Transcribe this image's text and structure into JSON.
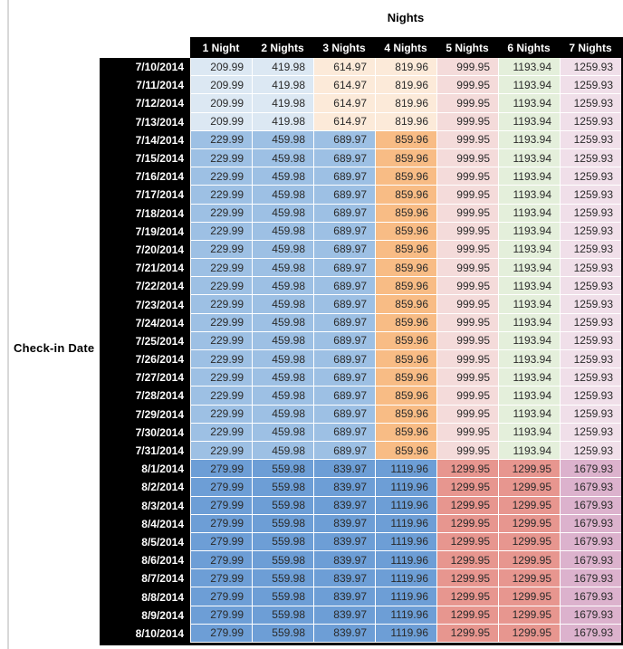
{
  "table": {
    "title": "Nights",
    "row_axis_label": "Check-in Date",
    "columns": [
      "1 Night",
      "2 Nights",
      "3 Nights",
      "4 Nights",
      "5 Nights",
      "6 Nights",
      "7 Nights"
    ],
    "palette": {
      "lightBlue": "#DCE8F3",
      "lightOrange": "#FCEAD9",
      "medBlue": "#9DC0E4",
      "medOrange": "#F8BC85",
      "lightPink": "#F4DBDA",
      "lightGreen": "#E4EFDB",
      "lightLavender": "#F0DFE9",
      "darkBlue": "#6D9ED6",
      "darkRed": "#E7968F",
      "darkMauve": "#DCB2CD",
      "headerBg": "#000000",
      "headerText": "#FFFFFF"
    },
    "rows": [
      {
        "date": "7/10/2014",
        "values": [
          "209.99",
          "419.98",
          "614.97",
          "819.96",
          "999.95",
          "1193.94",
          "1259.93"
        ],
        "colors": [
          "lightBlue",
          "lightBlue",
          "lightOrange",
          "lightOrange",
          "lightPink",
          "lightGreen",
          "lightLavender"
        ]
      },
      {
        "date": "7/11/2014",
        "values": [
          "209.99",
          "419.98",
          "614.97",
          "819.96",
          "999.95",
          "1193.94",
          "1259.93"
        ],
        "colors": [
          "lightBlue",
          "lightBlue",
          "lightOrange",
          "lightOrange",
          "lightPink",
          "lightGreen",
          "lightLavender"
        ]
      },
      {
        "date": "7/12/2014",
        "values": [
          "209.99",
          "419.98",
          "614.97",
          "819.96",
          "999.95",
          "1193.94",
          "1259.93"
        ],
        "colors": [
          "lightBlue",
          "lightBlue",
          "lightOrange",
          "lightOrange",
          "lightPink",
          "lightGreen",
          "lightLavender"
        ]
      },
      {
        "date": "7/13/2014",
        "values": [
          "209.99",
          "419.98",
          "614.97",
          "819.96",
          "999.95",
          "1193.94",
          "1259.93"
        ],
        "colors": [
          "lightBlue",
          "lightBlue",
          "lightOrange",
          "lightOrange",
          "lightPink",
          "lightGreen",
          "lightLavender"
        ]
      },
      {
        "date": "7/14/2014",
        "values": [
          "229.99",
          "459.98",
          "689.97",
          "859.96",
          "999.95",
          "1193.94",
          "1259.93"
        ],
        "colors": [
          "medBlue",
          "medBlue",
          "medBlue",
          "medOrange",
          "lightPink",
          "lightGreen",
          "lightLavender"
        ]
      },
      {
        "date": "7/15/2014",
        "values": [
          "229.99",
          "459.98",
          "689.97",
          "859.96",
          "999.95",
          "1193.94",
          "1259.93"
        ],
        "colors": [
          "medBlue",
          "medBlue",
          "medBlue",
          "medOrange",
          "lightPink",
          "lightGreen",
          "lightLavender"
        ]
      },
      {
        "date": "7/16/2014",
        "values": [
          "229.99",
          "459.98",
          "689.97",
          "859.96",
          "999.95",
          "1193.94",
          "1259.93"
        ],
        "colors": [
          "medBlue",
          "medBlue",
          "medBlue",
          "medOrange",
          "lightPink",
          "lightGreen",
          "lightLavender"
        ]
      },
      {
        "date": "7/17/2014",
        "values": [
          "229.99",
          "459.98",
          "689.97",
          "859.96",
          "999.95",
          "1193.94",
          "1259.93"
        ],
        "colors": [
          "medBlue",
          "medBlue",
          "medBlue",
          "medOrange",
          "lightPink",
          "lightGreen",
          "lightLavender"
        ]
      },
      {
        "date": "7/18/2014",
        "values": [
          "229.99",
          "459.98",
          "689.97",
          "859.96",
          "999.95",
          "1193.94",
          "1259.93"
        ],
        "colors": [
          "medBlue",
          "medBlue",
          "medBlue",
          "medOrange",
          "lightPink",
          "lightGreen",
          "lightLavender"
        ]
      },
      {
        "date": "7/19/2014",
        "values": [
          "229.99",
          "459.98",
          "689.97",
          "859.96",
          "999.95",
          "1193.94",
          "1259.93"
        ],
        "colors": [
          "medBlue",
          "medBlue",
          "medBlue",
          "medOrange",
          "lightPink",
          "lightGreen",
          "lightLavender"
        ]
      },
      {
        "date": "7/20/2014",
        "values": [
          "229.99",
          "459.98",
          "689.97",
          "859.96",
          "999.95",
          "1193.94",
          "1259.93"
        ],
        "colors": [
          "medBlue",
          "medBlue",
          "medBlue",
          "medOrange",
          "lightPink",
          "lightGreen",
          "lightLavender"
        ]
      },
      {
        "date": "7/21/2014",
        "values": [
          "229.99",
          "459.98",
          "689.97",
          "859.96",
          "999.95",
          "1193.94",
          "1259.93"
        ],
        "colors": [
          "medBlue",
          "medBlue",
          "medBlue",
          "medOrange",
          "lightPink",
          "lightGreen",
          "lightLavender"
        ]
      },
      {
        "date": "7/22/2014",
        "values": [
          "229.99",
          "459.98",
          "689.97",
          "859.96",
          "999.95",
          "1193.94",
          "1259.93"
        ],
        "colors": [
          "medBlue",
          "medBlue",
          "medBlue",
          "medOrange",
          "lightPink",
          "lightGreen",
          "lightLavender"
        ]
      },
      {
        "date": "7/23/2014",
        "values": [
          "229.99",
          "459.98",
          "689.97",
          "859.96",
          "999.95",
          "1193.94",
          "1259.93"
        ],
        "colors": [
          "medBlue",
          "medBlue",
          "medBlue",
          "medOrange",
          "lightPink",
          "lightGreen",
          "lightLavender"
        ]
      },
      {
        "date": "7/24/2014",
        "values": [
          "229.99",
          "459.98",
          "689.97",
          "859.96",
          "999.95",
          "1193.94",
          "1259.93"
        ],
        "colors": [
          "medBlue",
          "medBlue",
          "medBlue",
          "medOrange",
          "lightPink",
          "lightGreen",
          "lightLavender"
        ]
      },
      {
        "date": "7/25/2014",
        "values": [
          "229.99",
          "459.98",
          "689.97",
          "859.96",
          "999.95",
          "1193.94",
          "1259.93"
        ],
        "colors": [
          "medBlue",
          "medBlue",
          "medBlue",
          "medOrange",
          "lightPink",
          "lightGreen",
          "lightLavender"
        ]
      },
      {
        "date": "7/26/2014",
        "values": [
          "229.99",
          "459.98",
          "689.97",
          "859.96",
          "999.95",
          "1193.94",
          "1259.93"
        ],
        "colors": [
          "medBlue",
          "medBlue",
          "medBlue",
          "medOrange",
          "lightPink",
          "lightGreen",
          "lightLavender"
        ]
      },
      {
        "date": "7/27/2014",
        "values": [
          "229.99",
          "459.98",
          "689.97",
          "859.96",
          "999.95",
          "1193.94",
          "1259.93"
        ],
        "colors": [
          "medBlue",
          "medBlue",
          "medBlue",
          "medOrange",
          "lightPink",
          "lightGreen",
          "lightLavender"
        ]
      },
      {
        "date": "7/28/2014",
        "values": [
          "229.99",
          "459.98",
          "689.97",
          "859.96",
          "999.95",
          "1193.94",
          "1259.93"
        ],
        "colors": [
          "medBlue",
          "medBlue",
          "medBlue",
          "medOrange",
          "lightPink",
          "lightGreen",
          "lightLavender"
        ]
      },
      {
        "date": "7/29/2014",
        "values": [
          "229.99",
          "459.98",
          "689.97",
          "859.96",
          "999.95",
          "1193.94",
          "1259.93"
        ],
        "colors": [
          "medBlue",
          "medBlue",
          "medBlue",
          "medOrange",
          "lightPink",
          "lightGreen",
          "lightLavender"
        ]
      },
      {
        "date": "7/30/2014",
        "values": [
          "229.99",
          "459.98",
          "689.97",
          "859.96",
          "999.95",
          "1193.94",
          "1259.93"
        ],
        "colors": [
          "medBlue",
          "medBlue",
          "medBlue",
          "medOrange",
          "lightPink",
          "lightGreen",
          "lightLavender"
        ]
      },
      {
        "date": "7/31/2014",
        "values": [
          "229.99",
          "459.98",
          "689.97",
          "859.96",
          "999.95",
          "1193.94",
          "1259.93"
        ],
        "colors": [
          "medBlue",
          "medBlue",
          "medBlue",
          "medOrange",
          "lightPink",
          "lightGreen",
          "lightLavender"
        ]
      },
      {
        "date": "8/1/2014",
        "values": [
          "279.99",
          "559.98",
          "839.97",
          "1119.96",
          "1299.95",
          "1299.95",
          "1679.93"
        ],
        "colors": [
          "darkBlue",
          "darkBlue",
          "darkBlue",
          "darkBlue",
          "darkRed",
          "darkRed",
          "darkMauve"
        ]
      },
      {
        "date": "8/2/2014",
        "values": [
          "279.99",
          "559.98",
          "839.97",
          "1119.96",
          "1299.95",
          "1299.95",
          "1679.93"
        ],
        "colors": [
          "darkBlue",
          "darkBlue",
          "darkBlue",
          "darkBlue",
          "darkRed",
          "darkRed",
          "darkMauve"
        ]
      },
      {
        "date": "8/3/2014",
        "values": [
          "279.99",
          "559.98",
          "839.97",
          "1119.96",
          "1299.95",
          "1299.95",
          "1679.93"
        ],
        "colors": [
          "darkBlue",
          "darkBlue",
          "darkBlue",
          "darkBlue",
          "darkRed",
          "darkRed",
          "darkMauve"
        ]
      },
      {
        "date": "8/4/2014",
        "values": [
          "279.99",
          "559.98",
          "839.97",
          "1119.96",
          "1299.95",
          "1299.95",
          "1679.93"
        ],
        "colors": [
          "darkBlue",
          "darkBlue",
          "darkBlue",
          "darkBlue",
          "darkRed",
          "darkRed",
          "darkMauve"
        ]
      },
      {
        "date": "8/5/2014",
        "values": [
          "279.99",
          "559.98",
          "839.97",
          "1119.96",
          "1299.95",
          "1299.95",
          "1679.93"
        ],
        "colors": [
          "darkBlue",
          "darkBlue",
          "darkBlue",
          "darkBlue",
          "darkRed",
          "darkRed",
          "darkMauve"
        ]
      },
      {
        "date": "8/6/2014",
        "values": [
          "279.99",
          "559.98",
          "839.97",
          "1119.96",
          "1299.95",
          "1299.95",
          "1679.93"
        ],
        "colors": [
          "darkBlue",
          "darkBlue",
          "darkBlue",
          "darkBlue",
          "darkRed",
          "darkRed",
          "darkMauve"
        ]
      },
      {
        "date": "8/7/2014",
        "values": [
          "279.99",
          "559.98",
          "839.97",
          "1119.96",
          "1299.95",
          "1299.95",
          "1679.93"
        ],
        "colors": [
          "darkBlue",
          "darkBlue",
          "darkBlue",
          "darkBlue",
          "darkRed",
          "darkRed",
          "darkMauve"
        ]
      },
      {
        "date": "8/8/2014",
        "values": [
          "279.99",
          "559.98",
          "839.97",
          "1119.96",
          "1299.95",
          "1299.95",
          "1679.93"
        ],
        "colors": [
          "darkBlue",
          "darkBlue",
          "darkBlue",
          "darkBlue",
          "darkRed",
          "darkRed",
          "darkMauve"
        ]
      },
      {
        "date": "8/9/2014",
        "values": [
          "279.99",
          "559.98",
          "839.97",
          "1119.96",
          "1299.95",
          "1299.95",
          "1679.93"
        ],
        "colors": [
          "darkBlue",
          "darkBlue",
          "darkBlue",
          "darkBlue",
          "darkRed",
          "darkRed",
          "darkMauve"
        ]
      },
      {
        "date": "8/10/2014",
        "values": [
          "279.99",
          "559.98",
          "839.97",
          "1119.96",
          "1299.95",
          "1299.95",
          "1679.93"
        ],
        "colors": [
          "darkBlue",
          "darkBlue",
          "darkBlue",
          "darkBlue",
          "darkRed",
          "darkRed",
          "darkMauve"
        ]
      }
    ]
  }
}
